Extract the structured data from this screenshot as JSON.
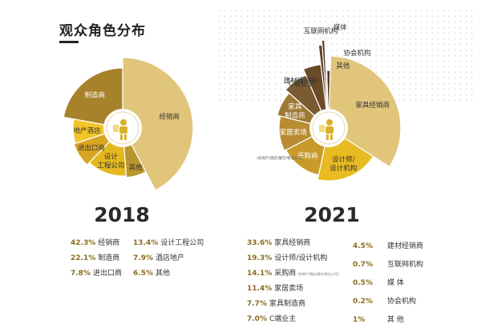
{
  "header": {
    "title": "观众角色分布"
  },
  "chart_data": [
    {
      "type": "pie",
      "title": "2018",
      "slices": [
        {
          "label": "经销商",
          "pct_text": "42.3%",
          "legend": "经销商",
          "value": 42.3,
          "color": "#e0c57a",
          "r": 88
        },
        {
          "label": "其他",
          "pct_text": "6.5%",
          "legend": "其他",
          "value": 6.5,
          "color": "#b8962e",
          "r": 62
        },
        {
          "label": "设计\n工程公司",
          "pct_text": "13.4%",
          "legend": "设计工程公司",
          "value": 13.4,
          "color": "#e4b81e",
          "r": 60
        },
        {
          "label": "进出口商",
          "pct_text": "7.8%",
          "legend": "进出口商",
          "value": 7.8,
          "color": "#d9a520",
          "r": 64
        },
        {
          "label": "地产酒店",
          "pct_text": "7.9%",
          "legend": "酒店地产",
          "value": 7.9,
          "color": "#f2c52a",
          "r": 62
        },
        {
          "label": "制造商",
          "pct_text": "22.1%",
          "legend": "制造商",
          "value": 22.1,
          "color": "#a8822a",
          "r": 75
        }
      ]
    },
    {
      "type": "pie",
      "title": "2021",
      "slices": [
        {
          "label": "其他",
          "pct_text": "1%",
          "legend": "其 他",
          "value": 1.0,
          "color": "#5a3a22",
          "r": 72
        },
        {
          "label": "家具经销商",
          "pct_text": "33.6%",
          "legend": "家具经销商",
          "value": 33.6,
          "color": "#e0c57a",
          "r": 90
        },
        {
          "label": "设计师/\n设计机构",
          "pct_text": "19.3%",
          "legend": "设计师/设计机构",
          "value": 19.3,
          "color": "#e9bb22",
          "r": 66
        },
        {
          "label": "采购商",
          "pct_text": "14.1%",
          "legend": "采购商",
          "sub": "(房地产/酒店/餐饮/物业公司)",
          "value": 14.1,
          "color": "#c79a2a",
          "r": 60
        },
        {
          "label": "家居卖场",
          "pct_text": "11.4%",
          "legend": "家居卖场",
          "value": 11.4,
          "color": "#b88c30",
          "r": 62
        },
        {
          "label": "家具\n制造商",
          "pct_text": "7.7%",
          "legend": "家具制造商",
          "value": 7.7,
          "color": "#9c7a34",
          "r": 66
        },
        {
          "label": "C端业主",
          "pct_text": "7.0%",
          "legend": "C端业主",
          "value": 7.0,
          "color": "#7a5a30",
          "r": 72
        },
        {
          "label": "建材经销商",
          "pct_text": "4.5%",
          "legend": "建材经销商",
          "value": 4.5,
          "color": "#6b4a28",
          "r": 80
        },
        {
          "label": "互联网机构",
          "pct_text": "0.7%",
          "legend": "互联网机构",
          "value": 0.7,
          "color": "#5c3d24",
          "r": 104
        },
        {
          "label": "媒体",
          "pct_text": "0.5%",
          "legend": "媒 体",
          "value": 0.5,
          "color": "#4f3420",
          "r": 110
        },
        {
          "label": "协会机构",
          "pct_text": "0.2%",
          "legend": "协会机构",
          "value": 0.2,
          "color": "#4a3020",
          "r": 96
        }
      ]
    }
  ]
}
